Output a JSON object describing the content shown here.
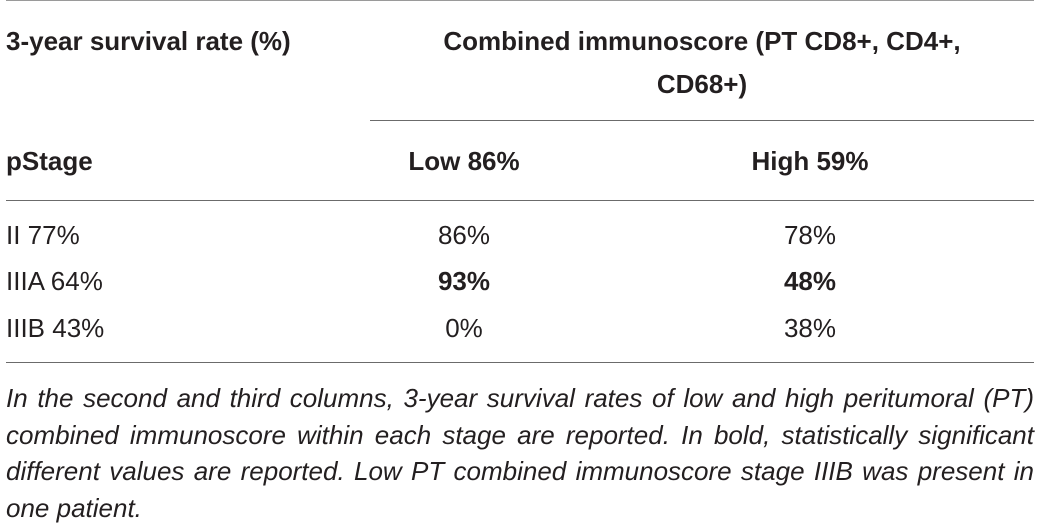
{
  "table": {
    "header": {
      "stub": "3-year survival rate (%)",
      "group_line1": "Combined immunoscore (PT CD8+, CD4+,",
      "group_line2": "CD68+)"
    },
    "subheader": {
      "stub": "pStage",
      "low": "Low 86%",
      "high": "High 59%"
    },
    "rows": [
      {
        "stage": "II 77%",
        "low": "86%",
        "high": "78%",
        "low_bold": false,
        "high_bold": false
      },
      {
        "stage": "IIIA 64%",
        "low": "93%",
        "high": "48%",
        "low_bold": true,
        "high_bold": true
      },
      {
        "stage": "IIIB 43%",
        "low": "0%",
        "high": "38%",
        "low_bold": false,
        "high_bold": false
      }
    ]
  },
  "footnote": "In the second and third columns, 3-year survival rates of low and high peritumoral (PT) combined immunoscore within each stage are reported. In bold, statistically significant different values are reported. Low PT combined immunoscore stage IIIB was present in one patient."
}
